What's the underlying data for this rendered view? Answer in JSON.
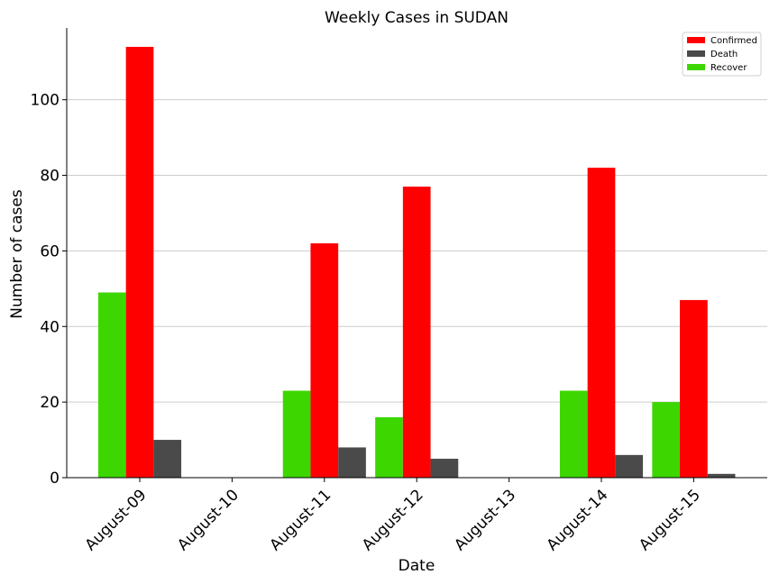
{
  "chart_data": {
    "type": "bar",
    "title": "Weekly Cases in SUDAN",
    "xlabel": "Date",
    "ylabel": "Number of cases",
    "categories": [
      "August-09",
      "August-10",
      "August-11",
      "August-12",
      "August-13",
      "August-14",
      "August-15"
    ],
    "series": [
      {
        "name": "Recover",
        "color": "#3dd600",
        "values": [
          49,
          0,
          23,
          16,
          0,
          23,
          20
        ]
      },
      {
        "name": "Confirmed",
        "color": "#ff0000",
        "values": [
          114,
          0,
          62,
          77,
          0,
          82,
          47
        ]
      },
      {
        "name": "Death",
        "color": "#4a4a4a",
        "values": [
          10,
          0,
          8,
          5,
          0,
          6,
          1
        ]
      }
    ],
    "legend_order": [
      "Confirmed",
      "Death",
      "Recover"
    ],
    "yticks": [
      0,
      20,
      40,
      60,
      80,
      100
    ],
    "ylim": [
      0,
      119
    ],
    "grid": "horizontal",
    "legend_position": "top-right"
  }
}
